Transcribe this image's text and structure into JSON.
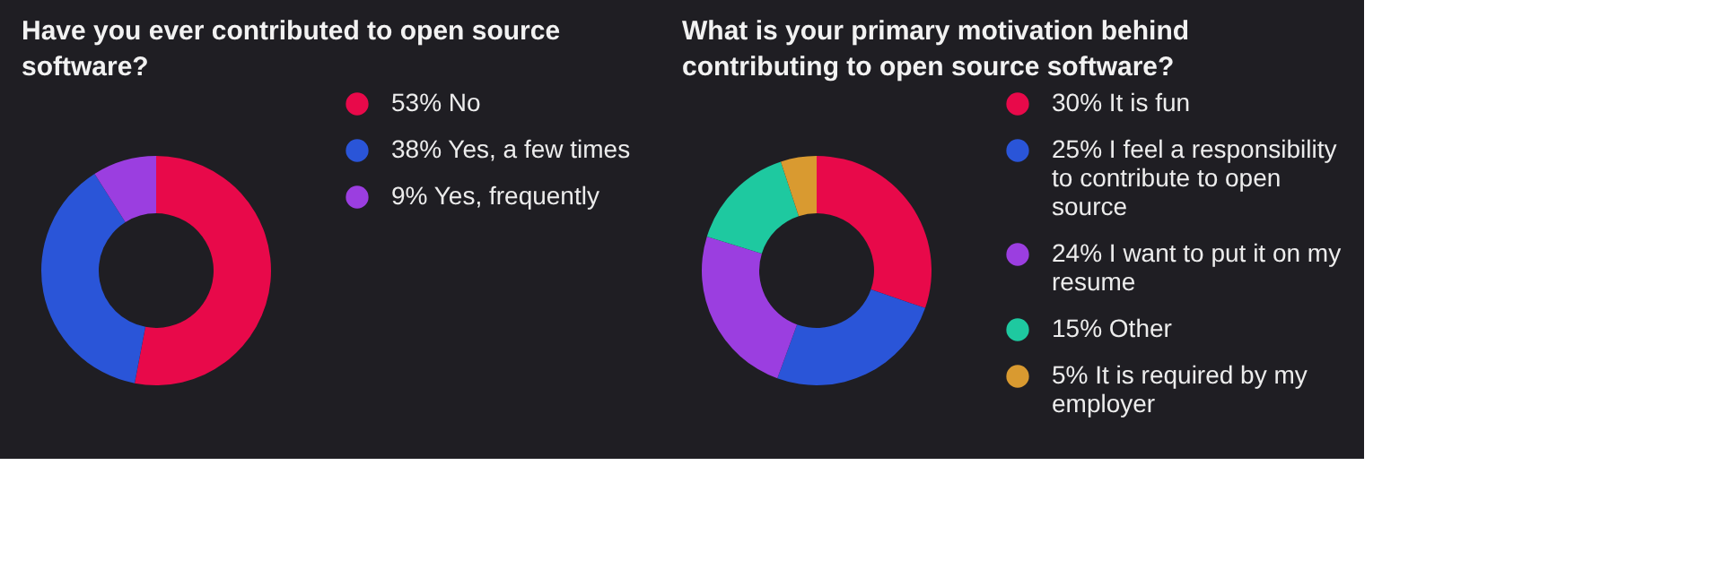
{
  "chart_data": [
    {
      "type": "donut",
      "title": "Have you ever contributed to open source software?",
      "categories": [
        "No",
        "Yes, a few times",
        "Yes, frequently"
      ],
      "values": [
        53,
        38,
        9
      ],
      "colors": [
        "#e8094a",
        "#2a55d8",
        "#9b3ee0"
      ],
      "value_labels": [
        "53%",
        "38%",
        "9%"
      ],
      "legend": "right"
    },
    {
      "type": "donut",
      "title": "What is your primary motivation behind contributing to open source software?",
      "categories": [
        "It is fun",
        "I feel a responsibility to contribute to open source",
        "I want to put it on my resume",
        "Other",
        "It is required by my employer"
      ],
      "values": [
        30,
        25,
        24,
        15,
        5
      ],
      "colors": [
        "#e8094a",
        "#2a55d8",
        "#9b3ee0",
        "#1ec9a0",
        "#d99a30"
      ],
      "value_labels": [
        "30%",
        "25%",
        "24%",
        "15%",
        "5%"
      ],
      "legend": "right"
    }
  ]
}
